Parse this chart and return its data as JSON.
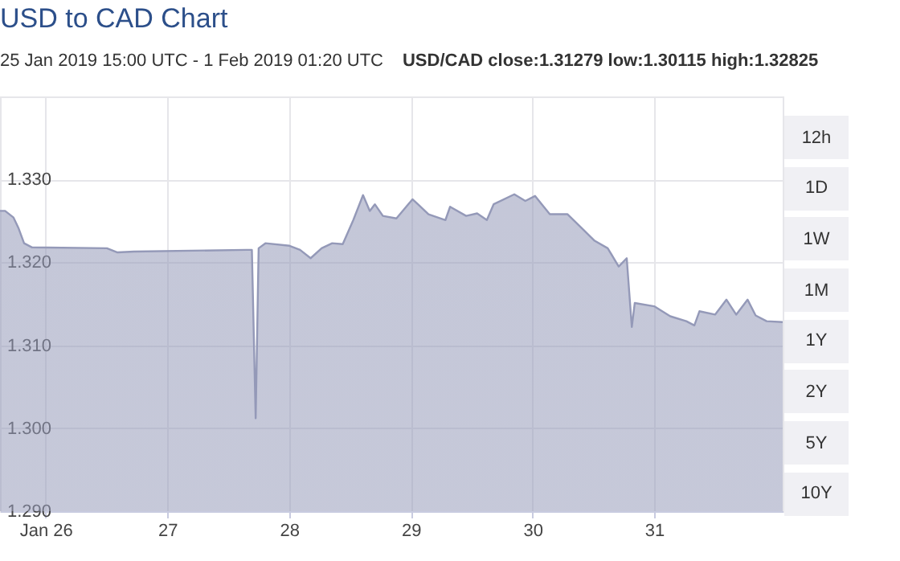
{
  "chart_data": {
    "type": "area",
    "title": "USD to CAD Chart",
    "subtitle": "25 Jan 2019 15:00 UTC - 1 Feb 2019 01:20 UTC",
    "annotations": [
      "USD/CAD close:1.31279 low:1.30115 high:1.32825",
      "12h",
      "1D",
      "1W",
      "1M",
      "1Y",
      "2Y",
      "5Y",
      "10Y"
    ],
    "x": [
      "2019-01-25T15:00",
      "2019-01-25T16:00",
      "2019-01-25T17:40",
      "2019-01-25T18:40",
      "2019-01-25T19:45",
      "2019-01-25T21:20",
      "2019-01-26T12:05",
      "2019-01-26T14:10",
      "2019-01-26T17:25",
      "2019-01-27T15:35",
      "2019-01-27T16:40",
      "2019-01-27T17:25",
      "2019-01-27T18:00",
      "2019-01-27T19:20",
      "2019-01-28T00:05",
      "2019-01-28T02:10",
      "2019-01-28T04:15",
      "2019-01-28T06:25",
      "2019-01-28T08:30",
      "2019-01-28T10:35",
      "2019-01-28T12:40",
      "2019-01-28T14:35",
      "2019-01-28T15:55",
      "2019-01-28T16:55",
      "2019-01-28T18:30",
      "2019-01-28T21:10",
      "2019-01-29T00:20",
      "2019-01-29T01:25",
      "2019-01-29T03:30",
      "2019-01-29T06:50",
      "2019-01-29T07:45",
      "2019-01-29T10:55",
      "2019-01-29T13:05",
      "2019-01-29T15:00",
      "2019-01-29T16:20",
      "2019-01-29T20:25",
      "2019-01-29T22:35",
      "2019-01-30T00:30",
      "2019-01-30T03:25",
      "2019-01-30T06:55",
      "2019-01-30T10:05",
      "2019-01-30T12:15",
      "2019-01-30T14:50",
      "2019-01-30T17:00",
      "2019-01-30T18:35",
      "2019-01-30T19:35",
      "2019-01-30T20:10",
      "2019-01-31T00:00",
      "2019-01-31T03:10",
      "2019-01-31T06:20",
      "2019-01-31T07:55",
      "2019-01-31T08:55",
      "2019-01-31T12:00",
      "2019-01-31T14:15",
      "2019-01-31T16:10",
      "2019-01-31T18:25",
      "2019-01-31T20:00",
      "2019-01-31T22:10",
      "2019-02-01T01:20"
    ],
    "series": [
      {
        "color": "#9499b8",
        "values": [
          1.3262,
          1.3262,
          1.3254,
          1.3241,
          1.3223,
          1.3218,
          1.3217,
          1.3212,
          1.3213,
          1.3215,
          1.3215,
          1.3012,
          1.3217,
          1.3223,
          1.322,
          1.3215,
          1.3205,
          1.3217,
          1.3223,
          1.3222,
          1.3251,
          1.3281,
          1.3262,
          1.327,
          1.3256,
          1.3253,
          1.3276,
          1.327,
          1.3258,
          1.3251,
          1.3267,
          1.3256,
          1.3259,
          1.3251,
          1.327,
          1.3282,
          1.3274,
          1.328,
          1.3258,
          1.3258,
          1.3239,
          1.3226,
          1.3217,
          1.3195,
          1.3205,
          1.3122,
          1.3151,
          1.3147,
          1.3135,
          1.3129,
          1.3124,
          1.3141,
          1.3137,
          1.3155,
          1.3137,
          1.3155,
          1.3136,
          1.3129,
          1.3128
        ]
      }
    ],
    "xlim": [
      "2019-01-25T15:00",
      "2019-02-01T01:20"
    ],
    "xticks": [
      {
        "value": "2019-01-26",
        "label": "Jan 26"
      },
      {
        "value": "2019-01-27",
        "label": "27"
      },
      {
        "value": "2019-01-28",
        "label": "28"
      },
      {
        "value": "2019-01-29",
        "label": "29"
      },
      {
        "value": "2019-01-30",
        "label": "30"
      },
      {
        "value": "2019-01-31",
        "label": "31"
      }
    ],
    "ylim": [
      1.29,
      1.34
    ],
    "yticks": [
      {
        "value": 1.29,
        "label": "1.290"
      },
      {
        "value": 1.3,
        "label": "1.300"
      },
      {
        "value": 1.31,
        "label": "1.310"
      },
      {
        "value": 1.32,
        "label": "1.320"
      },
      {
        "value": 1.33,
        "label": "1.330"
      }
    ],
    "grid": true
  }
}
